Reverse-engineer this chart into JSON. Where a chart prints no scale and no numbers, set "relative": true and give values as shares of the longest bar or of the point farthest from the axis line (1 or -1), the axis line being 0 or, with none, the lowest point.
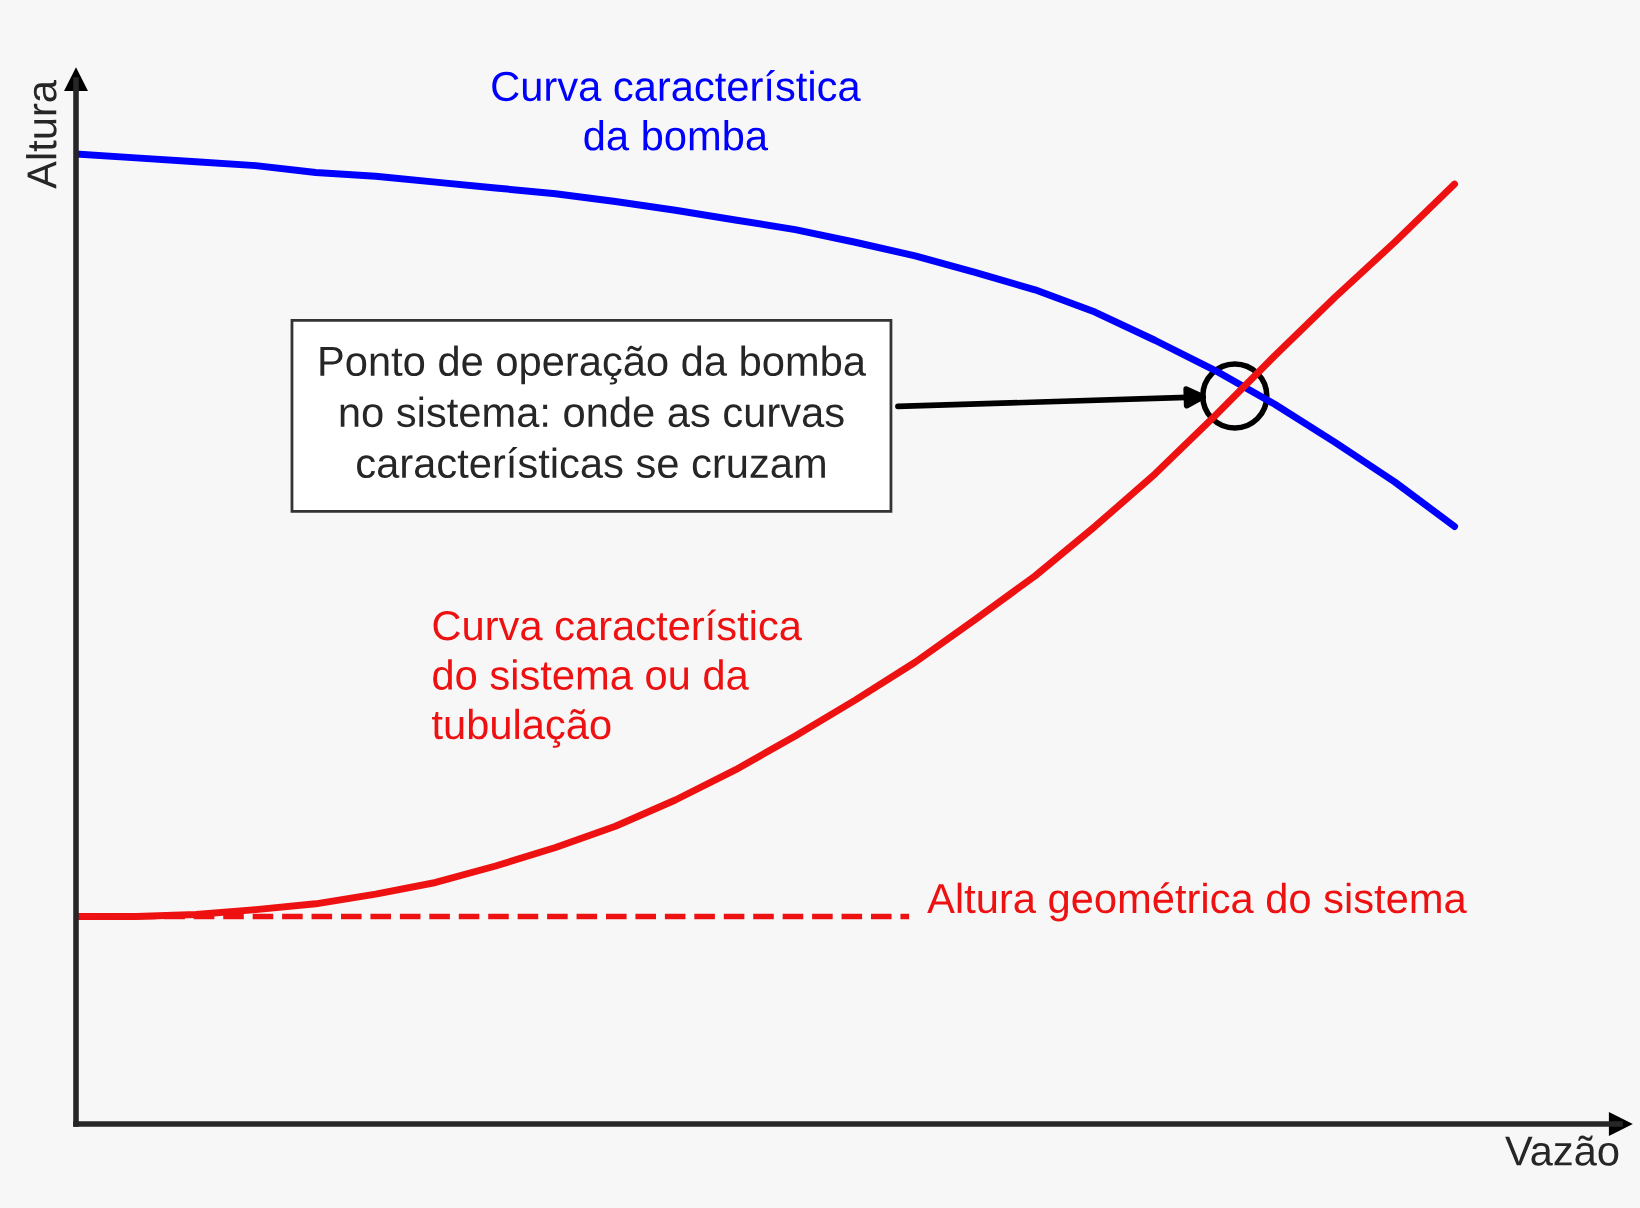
{
  "chart_data": {
    "type": "line",
    "relative": true,
    "xlabel": "Vazão",
    "ylabel": "Altura",
    "categories": [
      null,
      null,
      null,
      null,
      null,
      null,
      null,
      null,
      null,
      null,
      null,
      null,
      null,
      null,
      null,
      null,
      null,
      null,
      null,
      null,
      null,
      null,
      null,
      null
    ],
    "series": [
      {
        "name": "Curva característica\nda bomba",
        "color": "#0000ff",
        "values": [
          1.0,
          0.996,
          0.992,
          0.988,
          0.981,
          0.977,
          0.971,
          0.965,
          0.959,
          0.951,
          0.942,
          0.932,
          0.922,
          0.909,
          0.895,
          0.878,
          0.86,
          0.837,
          0.808,
          0.777,
          0.742,
          0.703,
          0.662,
          0.616
        ]
      },
      {
        "name": "Curva característica\ndo sistema ou da\ntubulação",
        "color": "#ee1111",
        "values": [
          0.214,
          0.214,
          0.216,
          0.221,
          0.227,
          0.237,
          0.249,
          0.266,
          0.285,
          0.307,
          0.334,
          0.365,
          0.4,
          0.437,
          0.476,
          0.52,
          0.565,
          0.616,
          0.67,
          0.73,
          0.792,
          0.852,
          0.909,
          0.969
        ]
      }
    ],
    "ref_lines": [
      {
        "axis": "y",
        "value": 0.214,
        "label": "Altura geométrica do sistema",
        "color": "#ee1111",
        "line_style": "dashed"
      }
    ],
    "annotations": [
      "Ponto de operação da bomba\nno sistema: onde as curvas\ncaracterísticas se cruzam"
    ],
    "line_style": "solid",
    "legend": false
  }
}
